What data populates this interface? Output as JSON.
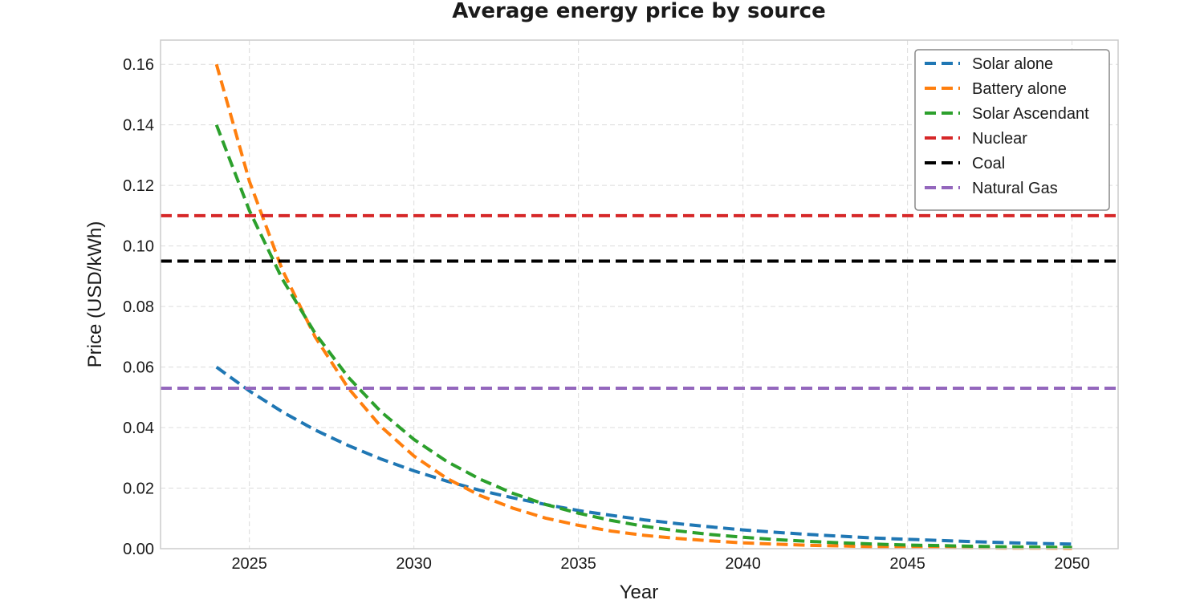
{
  "chart_data": {
    "type": "line",
    "title": "Average energy price by source",
    "xlabel": "Year",
    "ylabel": "Price (USD/kWh)",
    "xlim": [
      2022.3,
      2051.4
    ],
    "ylim": [
      0,
      0.168
    ],
    "x_ticks": [
      2025,
      2030,
      2035,
      2040,
      2045,
      2050
    ],
    "y_ticks": [
      0.0,
      0.02,
      0.04,
      0.06,
      0.08,
      0.1,
      0.12,
      0.14,
      0.16
    ],
    "x_tick_labels": [
      "2025",
      "2030",
      "2035",
      "2040",
      "2045",
      "2050"
    ],
    "y_tick_labels": [
      "0.00",
      "0.02",
      "0.04",
      "0.06",
      "0.08",
      "0.10",
      "0.12",
      "0.14",
      "0.16"
    ],
    "grid": true,
    "legend_position": "top-right",
    "line_style": "dashed",
    "x": [
      2024,
      2025,
      2026,
      2027,
      2028,
      2029,
      2030,
      2031,
      2032,
      2033,
      2034,
      2035,
      2036,
      2037,
      2038,
      2039,
      2040,
      2041,
      2042,
      2043,
      2044,
      2045,
      2046,
      2047,
      2048,
      2049,
      2050
    ],
    "series": [
      {
        "name": "Solar alone",
        "color": "#1f77b4",
        "values": [
          0.06,
          0.0521,
          0.0452,
          0.0392,
          0.0341,
          0.0296,
          0.0257,
          0.0223,
          0.0193,
          0.0168,
          0.0146,
          0.0126,
          0.011,
          0.0095,
          0.0083,
          0.0072,
          0.0062,
          0.0054,
          0.0047,
          0.0041,
          0.0035,
          0.0031,
          0.0027,
          0.0023,
          0.002,
          0.0017,
          0.0015
        ]
      },
      {
        "name": "Battery alone",
        "color": "#ff7f0e",
        "values": [
          0.16,
          0.1214,
          0.0921,
          0.0699,
          0.0531,
          0.0403,
          0.0306,
          0.0232,
          0.0176,
          0.0134,
          0.0101,
          0.0077,
          0.0058,
          0.0044,
          0.0034,
          0.0026,
          0.0019,
          0.0015,
          0.0011,
          0.0009,
          0.0006,
          0.0005,
          0.0004,
          0.0003,
          0.0002,
          0.0002,
          0.0001
        ]
      },
      {
        "name": "Solar Ascendant",
        "color": "#2ca02c",
        "values": [
          0.14,
          0.1117,
          0.0891,
          0.0711,
          0.0567,
          0.0452,
          0.0361,
          0.0288,
          0.023,
          0.0183,
          0.0146,
          0.0117,
          0.0093,
          0.0074,
          0.0059,
          0.0047,
          0.0038,
          0.003,
          0.0024,
          0.0019,
          0.0015,
          0.0012,
          0.001,
          0.0008,
          0.0006,
          0.0005,
          0.0004
        ]
      },
      {
        "name": "Nuclear",
        "color": "#d62728",
        "values": [
          0.11,
          0.11,
          0.11,
          0.11,
          0.11,
          0.11,
          0.11,
          0.11,
          0.11,
          0.11,
          0.11,
          0.11,
          0.11,
          0.11,
          0.11,
          0.11,
          0.11,
          0.11,
          0.11,
          0.11,
          0.11,
          0.11,
          0.11,
          0.11,
          0.11,
          0.11,
          0.11
        ]
      },
      {
        "name": "Coal",
        "color": "#000000",
        "values": [
          0.095,
          0.095,
          0.095,
          0.095,
          0.095,
          0.095,
          0.095,
          0.095,
          0.095,
          0.095,
          0.095,
          0.095,
          0.095,
          0.095,
          0.095,
          0.095,
          0.095,
          0.095,
          0.095,
          0.095,
          0.095,
          0.095,
          0.095,
          0.095,
          0.095,
          0.095,
          0.095
        ]
      },
      {
        "name": "Natural Gas",
        "color": "#9467bd",
        "values": [
          0.053,
          0.053,
          0.053,
          0.053,
          0.053,
          0.053,
          0.053,
          0.053,
          0.053,
          0.053,
          0.053,
          0.053,
          0.053,
          0.053,
          0.053,
          0.053,
          0.053,
          0.053,
          0.053,
          0.053,
          0.053,
          0.053,
          0.053,
          0.053,
          0.053,
          0.053,
          0.053
        ]
      }
    ]
  }
}
